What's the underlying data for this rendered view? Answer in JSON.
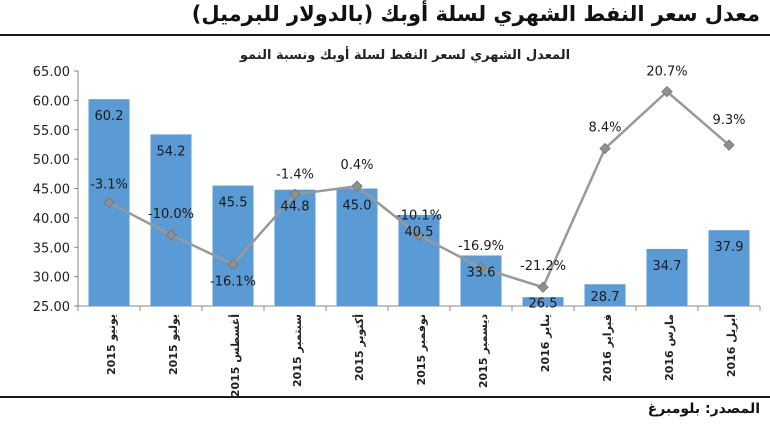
{
  "header": {
    "title": "معدل سعر النفط الشهري لسلة أوبك (بالدولار للبرميل)"
  },
  "footer": {
    "source": "المصدر: بلومبرغ"
  },
  "chart_data": {
    "type": "bar",
    "title": "المعدل الشهري لسعر النفط لسلة أوبك ونسبة النمو",
    "categories": [
      "يونيو 2015",
      "يوليو 2015",
      "أغسطس 2015",
      "سبتمبر 2015",
      "أكتوبر 2015",
      "نوفمبر 2015",
      "ديسمبر 2015",
      "يناير 2016",
      "فبراير 2016",
      "مارس 2016",
      "أبريل 2016"
    ],
    "series": [
      {
        "type": "bar",
        "values": [
          60.2,
          54.2,
          45.5,
          44.8,
          45.0,
          40.5,
          33.6,
          26.5,
          28.7,
          34.7,
          37.9
        ],
        "labels": [
          "60.2",
          "54.2",
          "45.5",
          "44.8",
          "45.0",
          "40.5",
          "33.6",
          "26.5",
          "28.7",
          "34.7",
          "37.9"
        ],
        "color": "#5b9bd5"
      },
      {
        "type": "line",
        "plotted_on_axis_as": [
          42.6,
          37.1,
          32.1,
          44.0,
          45.4,
          37.0,
          31.5,
          28.2,
          51.8,
          61.5,
          52.4
        ],
        "labels": [
          "-3.1%",
          "-10.0%",
          "-16.1%",
          "-1.4%",
          "0.4%",
          "-10.1%",
          "-16.9%",
          "-21.2%",
          "8.4%",
          "20.7%",
          "9.3%"
        ],
        "color": "#999999"
      }
    ],
    "y_axis": {
      "min": 25,
      "max": 65,
      "step": 5,
      "tick_labels": [
        "25.00",
        "30.00",
        "35.00",
        "40.00",
        "45.00",
        "50.00",
        "55.00",
        "60.00",
        "65.00"
      ]
    },
    "grid": false,
    "legend": "none"
  }
}
